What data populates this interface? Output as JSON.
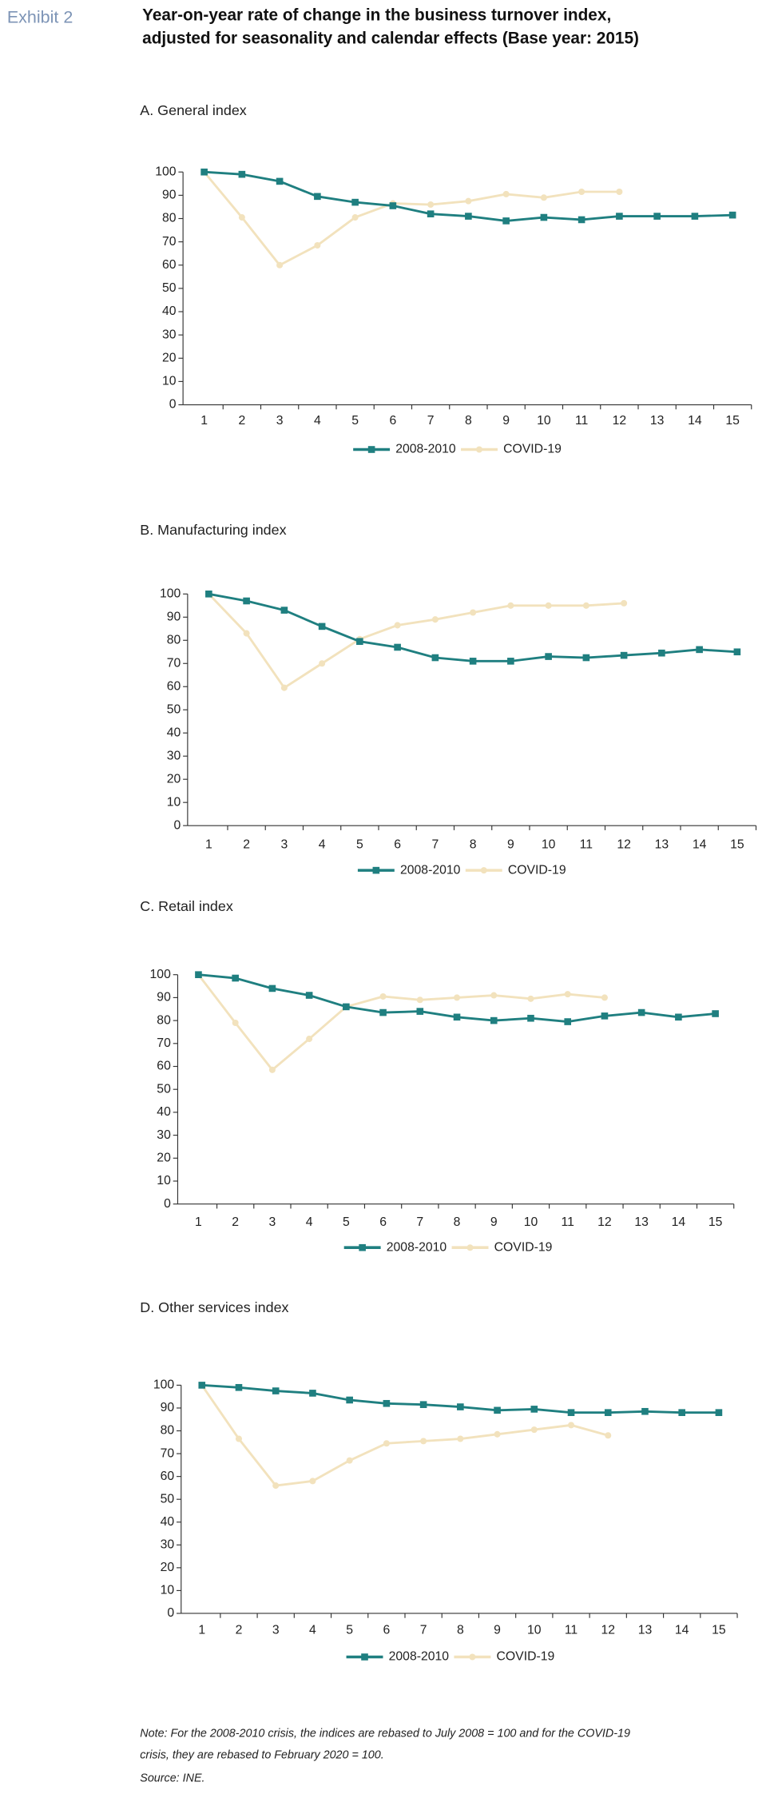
{
  "header": {
    "exhibit": "Exhibit 2",
    "title_lines": [
      "Year-on-year rate of change in the business turnover index,",
      "adjusted for seasonality and calendar effects (Base year: 2015)"
    ]
  },
  "chart_data": [
    {
      "type": "line",
      "title": "A. General index",
      "categories": [
        "1",
        "2",
        "3",
        "4",
        "5",
        "6",
        "7",
        "8",
        "9",
        "10",
        "11",
        "12",
        "13",
        "14",
        "15"
      ],
      "ylim": [
        0,
        100
      ],
      "yticks": [
        0,
        10,
        20,
        30,
        40,
        50,
        60,
        70,
        80,
        90,
        100
      ],
      "series": [
        {
          "name": "2008-2010",
          "color": "#1f7f80",
          "marker": "square",
          "values": [
            100,
            99,
            96,
            89.5,
            87,
            85.5,
            82,
            81,
            79,
            80.5,
            79.5,
            81,
            81,
            81,
            81.5
          ]
        },
        {
          "name": "COVID-19",
          "color": "#f2e2bd",
          "marker": "circle",
          "values": [
            100,
            80.5,
            60,
            68.5,
            80.5,
            86.5,
            86,
            87.5,
            90.5,
            89,
            91.5,
            91.5,
            null,
            null,
            null
          ]
        }
      ]
    },
    {
      "type": "line",
      "title": "B. Manufacturing index",
      "categories": [
        "1",
        "2",
        "3",
        "4",
        "5",
        "6",
        "7",
        "8",
        "9",
        "10",
        "11",
        "12",
        "13",
        "14",
        "15"
      ],
      "ylim": [
        0,
        100
      ],
      "yticks": [
        0,
        10,
        20,
        30,
        40,
        50,
        60,
        70,
        80,
        90,
        100
      ],
      "series": [
        {
          "name": "2008-2010",
          "color": "#1f7f80",
          "marker": "square",
          "values": [
            100,
            97,
            93,
            86,
            79.5,
            77,
            72.5,
            71,
            71,
            73,
            72.5,
            73.5,
            74.5,
            76,
            75
          ]
        },
        {
          "name": "COVID-19",
          "color": "#f2e2bd",
          "marker": "circle",
          "values": [
            100,
            83,
            59.5,
            70,
            80.5,
            86.5,
            89,
            92,
            95,
            95,
            95,
            96,
            null,
            null,
            null
          ]
        }
      ]
    },
    {
      "type": "line",
      "title": "C. Retail index",
      "categories": [
        "1",
        "2",
        "3",
        "4",
        "5",
        "6",
        "7",
        "8",
        "9",
        "10",
        "11",
        "12",
        "13",
        "14",
        "15"
      ],
      "ylim": [
        0,
        100
      ],
      "yticks": [
        0,
        10,
        20,
        30,
        40,
        50,
        60,
        70,
        80,
        90,
        100
      ],
      "series": [
        {
          "name": "2008-2010",
          "color": "#1f7f80",
          "marker": "square",
          "values": [
            100,
            98.5,
            94,
            91,
            86,
            83.5,
            84,
            81.5,
            80,
            81,
            79.5,
            82,
            83.5,
            81.5,
            83
          ]
        },
        {
          "name": "COVID-19",
          "color": "#f2e2bd",
          "marker": "circle",
          "values": [
            100,
            79,
            58.5,
            72,
            86,
            90.5,
            89,
            90,
            91,
            89.5,
            91.5,
            90,
            null,
            null,
            null
          ]
        }
      ]
    },
    {
      "type": "line",
      "title": "D. Other services index",
      "categories": [
        "1",
        "2",
        "3",
        "4",
        "5",
        "6",
        "7",
        "8",
        "9",
        "10",
        "11",
        "12",
        "13",
        "14",
        "15"
      ],
      "ylim": [
        0,
        100
      ],
      "yticks": [
        0,
        10,
        20,
        30,
        40,
        50,
        60,
        70,
        80,
        90,
        100
      ],
      "series": [
        {
          "name": "2008-2010",
          "color": "#1f7f80",
          "marker": "square",
          "values": [
            100,
            99,
            97.5,
            96.5,
            93.5,
            92,
            91.5,
            90.5,
            89,
            89.5,
            88,
            88,
            88.5,
            88,
            88
          ]
        },
        {
          "name": "COVID-19",
          "color": "#f2e2bd",
          "marker": "circle",
          "values": [
            100,
            76.5,
            56,
            58,
            67,
            74.5,
            75.5,
            76.5,
            78.5,
            80.5,
            82.5,
            78,
            null,
            null,
            null
          ]
        }
      ]
    }
  ],
  "note_lines": [
    "Note: For the 2008-2010 crisis, the indices are rebased to July 2008 = 100 and for the COVID-19",
    "crisis, they are rebased to February 2020 = 100."
  ],
  "source": "Source: INE."
}
